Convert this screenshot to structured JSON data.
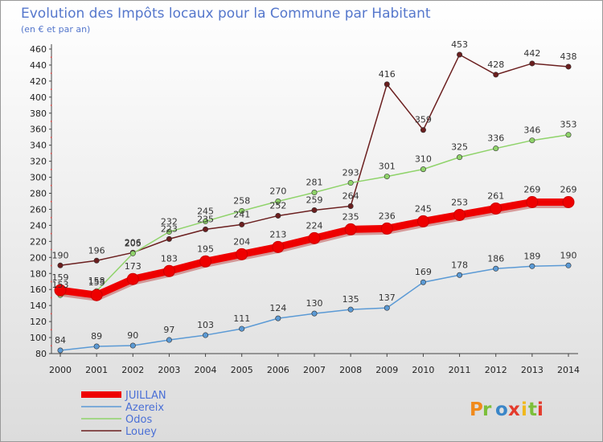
{
  "title": "Evolution des Impôts locaux pour la Commune par Habitant",
  "subtitle": "(en € et par an)",
  "logo": "Proxiti",
  "colors": {
    "background_top": "#ffffff",
    "background_bottom": "#dcdcdc",
    "title": "#5577cc"
  },
  "chart_data": {
    "type": "line",
    "x": [
      2000,
      2001,
      2002,
      2003,
      2004,
      2005,
      2006,
      2007,
      2008,
      2009,
      2010,
      2011,
      2012,
      2013,
      2014
    ],
    "ylim": [
      80,
      460
    ],
    "ytick_step": 20,
    "grid": false,
    "legend_position": "bottom-left",
    "series": [
      {
        "name": "Louey",
        "color": "#6b1f1f",
        "values": [
          190,
          196,
          206,
          223,
          235,
          241,
          252,
          259,
          264,
          416,
          359,
          453,
          428,
          442,
          438
        ]
      },
      {
        "name": "Odos",
        "color": "#8fd36a",
        "values": [
          153,
          158,
          205,
          232,
          245,
          258,
          270,
          281,
          293,
          301,
          310,
          325,
          336,
          346,
          353
        ]
      },
      {
        "name": "Azereix",
        "color": "#5b9ad5",
        "values": [
          84,
          89,
          90,
          97,
          103,
          111,
          124,
          130,
          135,
          137,
          169,
          178,
          186,
          189,
          190
        ]
      },
      {
        "name": "JUILLAN",
        "color": "#ee0000",
        "values": [
          159,
          153,
          173,
          183,
          195,
          204,
          213,
          224,
          235,
          236,
          245,
          253,
          261,
          269,
          269
        ]
      }
    ]
  }
}
